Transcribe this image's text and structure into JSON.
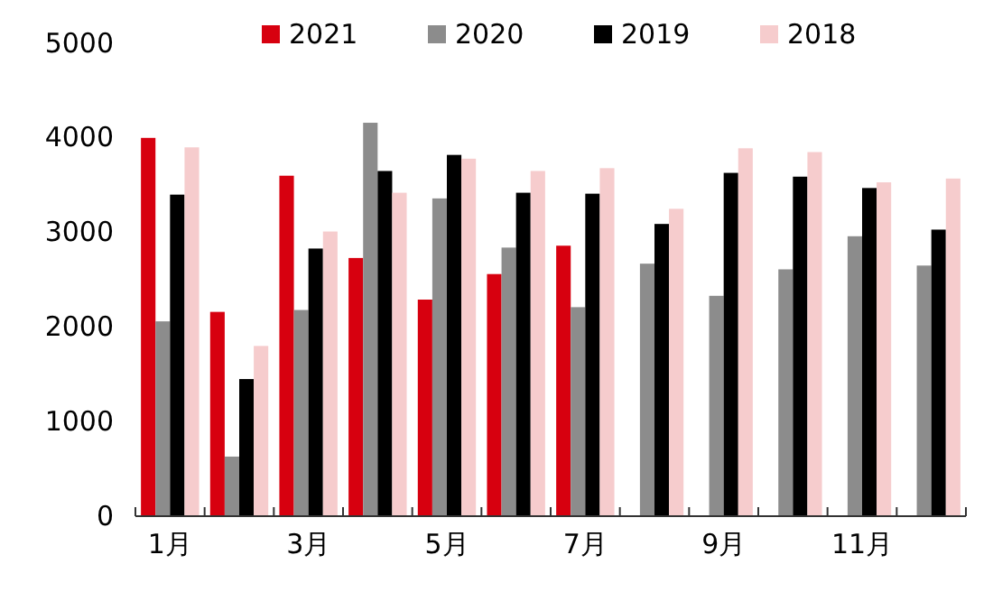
{
  "chart_data": {
    "type": "bar",
    "categories": [
      "1月",
      null,
      "3月",
      null,
      "5月",
      null,
      "7月",
      null,
      "9月",
      null,
      "11月",
      null
    ],
    "series": [
      {
        "name": "2021",
        "color": "#d7000f",
        "values": [
          4000,
          2160,
          3600,
          2730,
          2290,
          2560,
          2860,
          null,
          null,
          null,
          null,
          null
        ]
      },
      {
        "name": "2020",
        "color": "#8c8c8c",
        "values": [
          2060,
          630,
          2180,
          4160,
          3360,
          2840,
          2210,
          2670,
          2330,
          2610,
          2960,
          2650
        ]
      },
      {
        "name": "2019",
        "color": "#000000",
        "values": [
          3400,
          1450,
          2830,
          3650,
          3820,
          3420,
          3410,
          3090,
          3630,
          3590,
          3470,
          3030
        ]
      },
      {
        "name": "2018",
        "color": "#f6cccd",
        "values": [
          3900,
          1800,
          3010,
          3420,
          3780,
          3650,
          3680,
          3250,
          3890,
          3850,
          3530,
          3570
        ]
      }
    ],
    "ylim": [
      0,
      5000
    ],
    "yticks": [
      0,
      1000,
      2000,
      3000,
      4000,
      5000
    ],
    "grid": false,
    "legend": "top"
  }
}
